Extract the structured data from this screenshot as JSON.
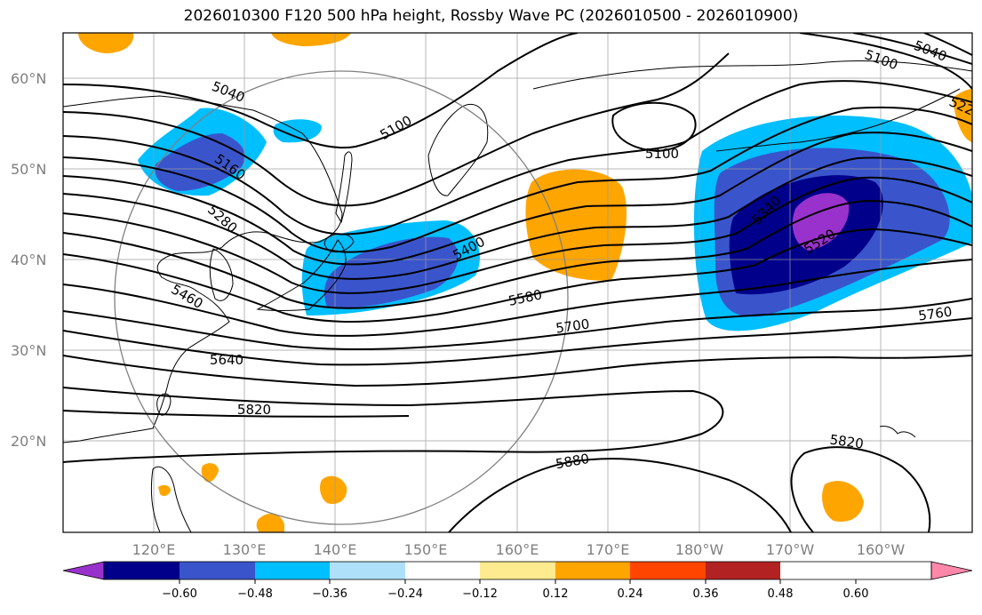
{
  "title": "2026010300 F120 500 hPa height, Rossby Wave PC (2026010500 - 2026010900)",
  "map": {
    "lat_labels": [
      "60°N",
      "50°N",
      "40°N",
      "30°N",
      "20°N"
    ],
    "lon_labels": [
      "120°E",
      "130°E",
      "140°E",
      "150°E",
      "160°E",
      "170°E",
      "180°W",
      "170°W",
      "160°W"
    ]
  },
  "contour_labels": [
    "5040",
    "5160",
    "5280",
    "5460",
    "5100",
    "5400",
    "5100",
    "5340",
    "5520",
    "5580",
    "5700",
    "5640",
    "5820",
    "5880",
    "5760",
    "5820",
    "5040",
    "5100",
    "522"
  ],
  "colorbar": {
    "ticks": [
      "−0.60",
      "−0.48",
      "−0.36",
      "−0.24",
      "−0.12",
      "0.12",
      "0.24",
      "0.36",
      "0.48",
      "0.60"
    ],
    "colors": [
      "#9932cc",
      "#00008b",
      "#3a55cc",
      "#00bfff",
      "#aee0fa",
      "#ffffff",
      "#ffeb8f",
      "#ffa500",
      "#ff4500",
      "#b22222",
      "#ff88aa"
    ],
    "under_color": "#9932cc",
    "over_color": "#ff88aa"
  }
}
